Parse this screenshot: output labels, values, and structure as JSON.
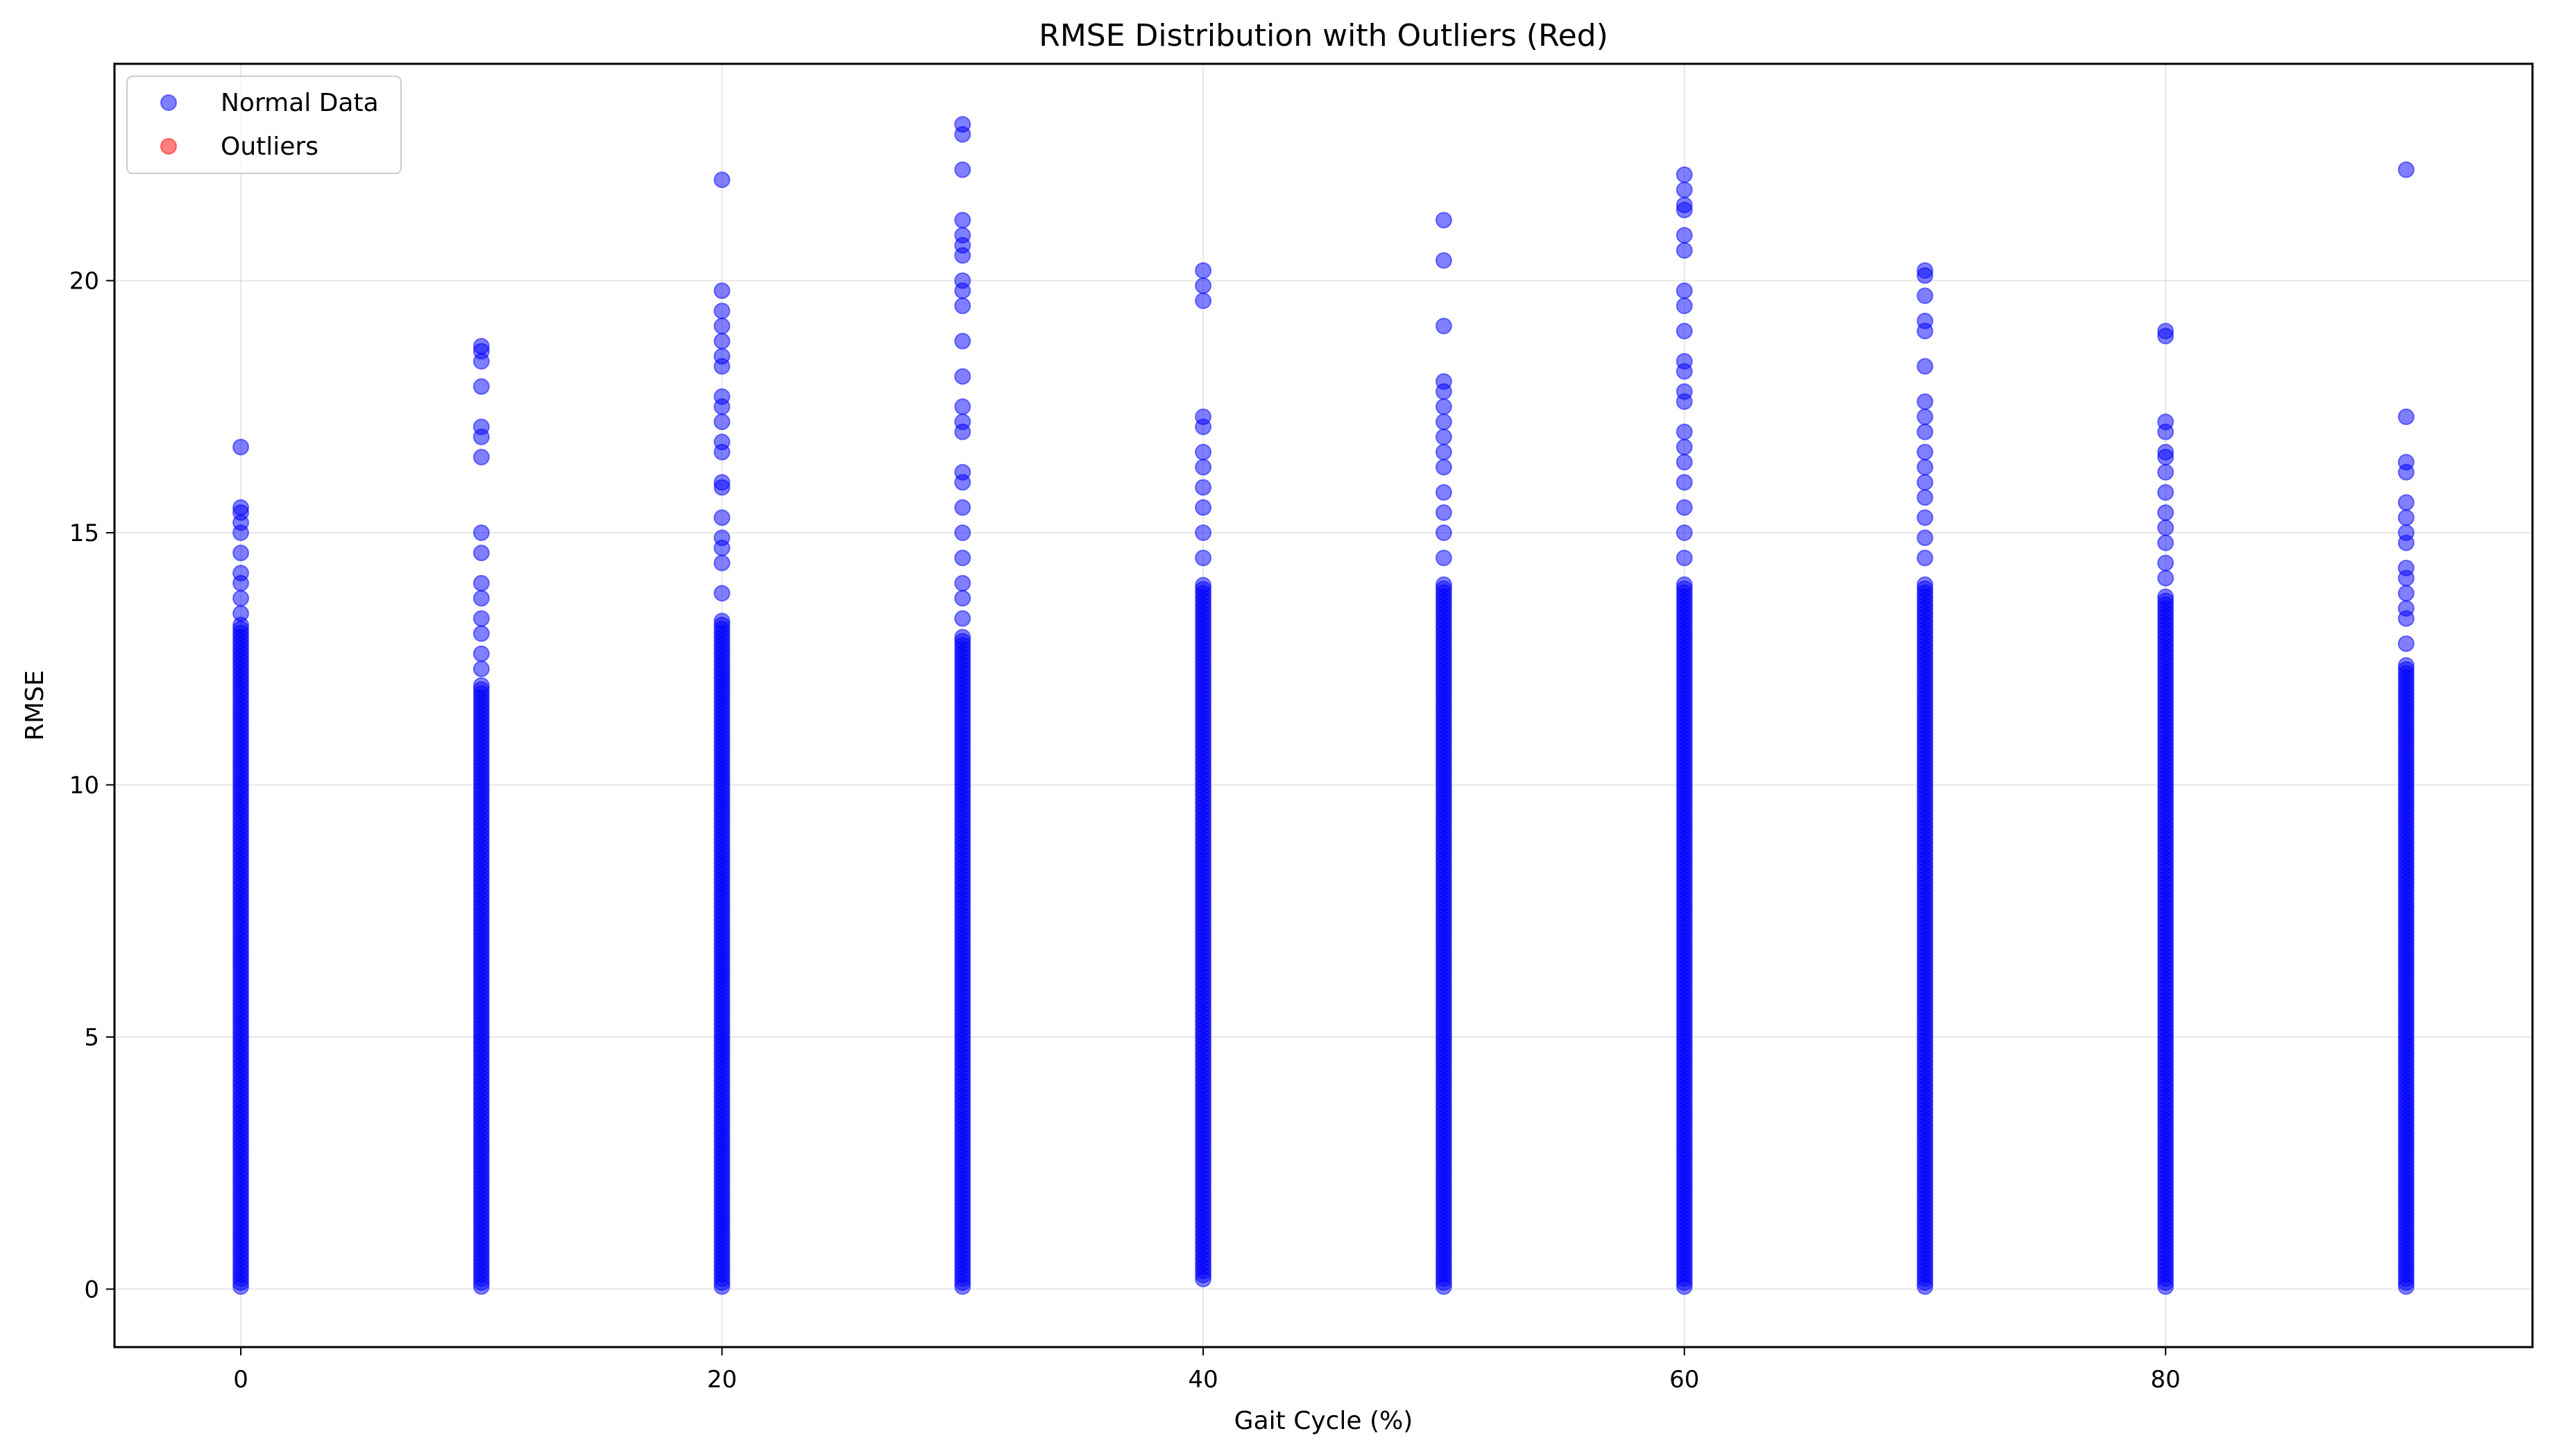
{
  "chart_data": {
    "type": "scatter",
    "title": "RMSE Distribution with Outliers (Red)",
    "xlabel": "Gait Cycle (%)",
    "ylabel": "RMSE",
    "xlim": [
      -5.25,
      95.25
    ],
    "ylim": [
      -1.15,
      24.3
    ],
    "xticks": [
      0,
      20,
      40,
      60,
      80
    ],
    "yticks": [
      0,
      5,
      10,
      15,
      20
    ],
    "grid": true,
    "legend_position": "top-left",
    "series": [
      {
        "name": "Normal Data",
        "color": "#0000ff",
        "alpha": 0.5,
        "groups": [
          {
            "x": 0,
            "dense_min": 0.05,
            "dense_max": 13.2,
            "sparse": [
              13.4,
              13.7,
              14.0,
              14.2,
              14.6,
              15.0,
              15.2,
              15.4,
              15.5,
              16.7
            ]
          },
          {
            "x": 10,
            "dense_min": 0.05,
            "dense_max": 12.0,
            "sparse": [
              12.3,
              12.6,
              13.0,
              13.3,
              13.7,
              14.0,
              14.6,
              15.0,
              16.5,
              16.9,
              17.1,
              17.9,
              18.4,
              18.6,
              18.7
            ]
          },
          {
            "x": 20,
            "dense_min": 0.05,
            "dense_max": 13.3,
            "sparse": [
              13.8,
              14.4,
              14.7,
              14.9,
              15.3,
              15.9,
              16.0,
              16.6,
              16.8,
              17.2,
              17.5,
              17.7,
              18.3,
              18.5,
              18.8,
              19.1,
              19.4,
              19.8,
              22.0
            ]
          },
          {
            "x": 30,
            "dense_min": 0.05,
            "dense_max": 13.0,
            "sparse": [
              13.3,
              13.7,
              14.0,
              14.5,
              15.0,
              15.5,
              16.0,
              16.2,
              17.0,
              17.2,
              17.5,
              18.1,
              18.8,
              19.5,
              19.8,
              20.0,
              20.5,
              20.7,
              20.9,
              21.2,
              22.2,
              22.9,
              23.1
            ]
          },
          {
            "x": 40,
            "dense_min": 0.2,
            "dense_max": 14.0,
            "sparse": [
              14.5,
              15.0,
              15.5,
              15.9,
              16.3,
              16.6,
              17.1,
              17.3,
              19.6,
              19.9,
              20.2
            ]
          },
          {
            "x": 50,
            "dense_min": 0.05,
            "dense_max": 14.0,
            "sparse": [
              14.5,
              15.0,
              15.4,
              15.8,
              16.3,
              16.6,
              16.9,
              17.2,
              17.5,
              17.8,
              18.0,
              19.1,
              20.4,
              21.2
            ]
          },
          {
            "x": 60,
            "dense_min": 0.05,
            "dense_max": 14.0,
            "sparse": [
              14.5,
              15.0,
              15.5,
              16.0,
              16.4,
              16.7,
              17.0,
              17.6,
              17.8,
              18.2,
              18.4,
              19.0,
              19.5,
              19.8,
              20.6,
              20.9,
              21.4,
              21.5,
              21.8,
              22.1
            ]
          },
          {
            "x": 70,
            "dense_min": 0.05,
            "dense_max": 14.0,
            "sparse": [
              14.5,
              14.9,
              15.3,
              15.7,
              16.0,
              16.3,
              16.6,
              17.0,
              17.3,
              17.6,
              18.3,
              19.0,
              19.2,
              19.7,
              20.1,
              20.2
            ]
          },
          {
            "x": 80,
            "dense_min": 0.05,
            "dense_max": 13.8,
            "sparse": [
              14.1,
              14.4,
              14.8,
              15.1,
              15.4,
              15.8,
              16.2,
              16.5,
              16.6,
              17.0,
              17.2,
              18.9,
              19.0
            ]
          },
          {
            "x": 90,
            "dense_min": 0.05,
            "dense_max": 12.4,
            "sparse": [
              12.8,
              13.3,
              13.5,
              13.8,
              14.1,
              14.3,
              14.8,
              15.0,
              15.3,
              15.6,
              16.2,
              16.4,
              17.3,
              22.2
            ]
          }
        ]
      },
      {
        "name": "Outliers",
        "color": "#ff0000",
        "alpha": 0.5,
        "groups": []
      }
    ]
  }
}
